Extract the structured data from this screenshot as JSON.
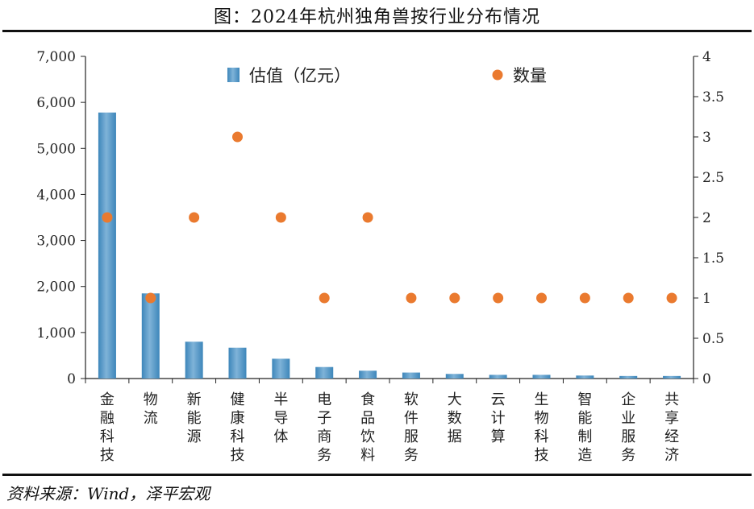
{
  "title": "图：2024年杭州独角兽按行业分布情况",
  "source": "资料来源：Wind，泽平宏观",
  "colors": {
    "bar": "#3d86ba",
    "bar_light": "#7fb3d8",
    "dot": "#ea7a2f",
    "axis": "#222222"
  },
  "chart_data": {
    "type": "bar",
    "categories": [
      "金融科技",
      "物流",
      "新能源",
      "健康科技",
      "半导体",
      "电子商务",
      "食品饮料",
      "软件服务",
      "大数据",
      "云计算",
      "生物科技",
      "智能制造",
      "企业服务",
      "共享经济"
    ],
    "series": [
      {
        "name": "估值（亿元）",
        "type": "bar",
        "axis": "left",
        "values": [
          5780,
          1850,
          800,
          670,
          430,
          250,
          170,
          130,
          100,
          80,
          80,
          65,
          55,
          55
        ]
      },
      {
        "name": "数量",
        "type": "scatter",
        "axis": "right",
        "values": [
          2,
          1,
          2,
          3,
          2,
          1,
          2,
          1,
          1,
          1,
          1,
          1,
          1,
          1
        ]
      }
    ],
    "y_left": {
      "range": [
        0,
        7000
      ],
      "ticks": [
        "0",
        "1,000",
        "2,000",
        "3,000",
        "4,000",
        "5,000",
        "6,000",
        "7,000"
      ]
    },
    "y_right": {
      "range": [
        0,
        4
      ],
      "ticks": [
        "0",
        "0.5",
        "1",
        "1.5",
        "2",
        "2.5",
        "3",
        "3.5",
        "4"
      ]
    },
    "legend_position": "top-center",
    "grid": false
  }
}
